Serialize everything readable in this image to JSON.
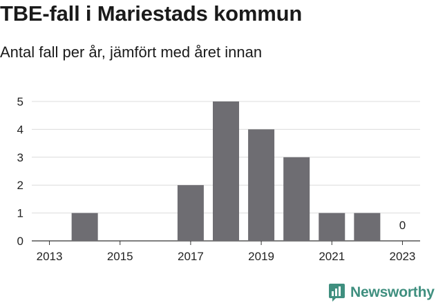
{
  "header": {
    "title": "TBE-fall i Mariestads kommun",
    "subtitle": "Antal fall per år, jämfört med året innan"
  },
  "brand": {
    "name": "Newsworthy",
    "color": "#3f8f7f"
  },
  "chart_data": {
    "type": "bar",
    "categories": [
      "2013",
      "2014",
      "2015",
      "2016",
      "2017",
      "2018",
      "2019",
      "2020",
      "2021",
      "2022",
      "2023"
    ],
    "x_tick_labels": [
      "2013",
      "2015",
      "2017",
      "2019",
      "2021",
      "2023"
    ],
    "values": [
      0,
      1,
      0,
      0,
      2,
      5,
      4,
      3,
      1,
      1,
      0
    ],
    "annotations": [
      {
        "category": "2023",
        "text": "0"
      }
    ],
    "ylim": [
      0,
      5
    ],
    "yticks": [
      0,
      1,
      2,
      3,
      4,
      5
    ],
    "grid": true,
    "bar_color": "#6e6d72",
    "title": "TBE-fall i Mariestads kommun",
    "subtitle": "Antal fall per år, jämfört med året innan",
    "xlabel": "",
    "ylabel": ""
  }
}
